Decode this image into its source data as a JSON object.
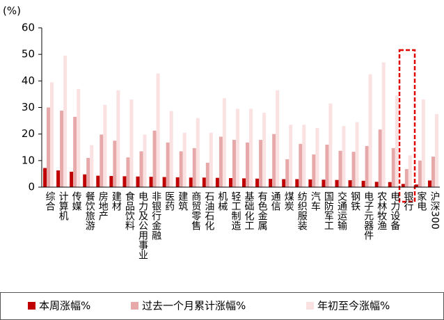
{
  "chart_data": {
    "type": "bar",
    "y_label": "(%)",
    "categories": [
      "综合",
      "计算机",
      "传媒",
      "餐饮旅游",
      "房地产",
      "建材",
      "食品饮料",
      "电力及公用事业",
      "非银行金融",
      "医药",
      "建筑",
      "商贸零售",
      "石油石化",
      "机械",
      "轻工制造",
      "基础化工",
      "有色金属",
      "通信",
      "煤炭",
      "纺织服装",
      "汽车",
      "国防军工",
      "交通运输",
      "钢铁",
      "电子元器件",
      "农林牧渔",
      "电力设备",
      "银行",
      "家电",
      "沪深300"
    ],
    "series": [
      {
        "name": "本周涨幅%",
        "color": "#c00000",
        "values": [
          7.2,
          6.3,
          5.8,
          4.8,
          4.3,
          4.2,
          4.1,
          4.0,
          3.9,
          3.8,
          3.7,
          3.6,
          3.6,
          3.5,
          3.4,
          3.3,
          3.2,
          3.1,
          3.0,
          3.0,
          2.9,
          2.8,
          2.7,
          2.6,
          2.4,
          2.0,
          1.9,
          1.2,
          1.0,
          2.5
        ]
      },
      {
        "name": "过去一个月累计涨幅%",
        "color": "#e6a8a8",
        "values": [
          30,
          28.8,
          26.5,
          11,
          19.8,
          17.5,
          11.2,
          13.5,
          21.3,
          16.8,
          13.5,
          14.7,
          9.2,
          19,
          17.8,
          16.8,
          17.8,
          20,
          10.5,
          16.3,
          12.3,
          16,
          13.7,
          13.3,
          15.5,
          21.7,
          14.7,
          6.8,
          10,
          11.5
        ]
      },
      {
        "name": "年初至今涨幅%",
        "color": "#fbe2e2",
        "values": [
          39.5,
          49.5,
          37,
          15.8,
          31,
          36.5,
          33,
          19.8,
          42.8,
          28.7,
          20.5,
          26,
          20.5,
          33.5,
          29.5,
          29.5,
          28,
          36.5,
          23.5,
          23.5,
          22.3,
          31.5,
          23,
          24.5,
          42.5,
          47,
          34.5,
          12,
          33,
          27.5
        ]
      }
    ],
    "ylim": [
      0,
      60
    ],
    "yticks": [
      0,
      10,
      20,
      30,
      40,
      50,
      60
    ]
  }
}
